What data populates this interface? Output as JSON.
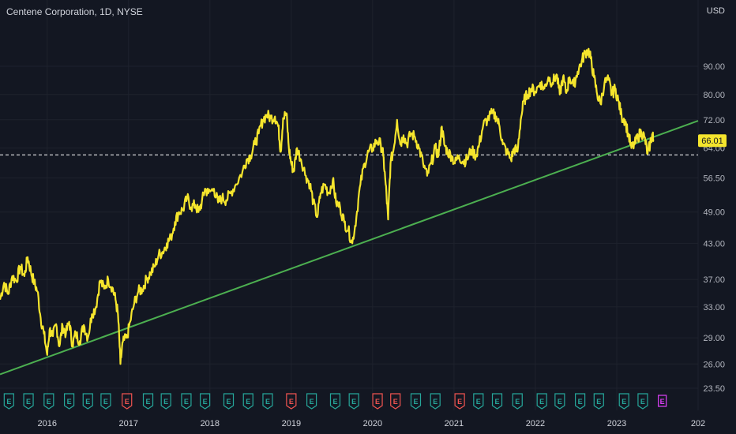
{
  "header": {
    "title": "Centene Corporation, 1D, NYSE",
    "currency": "USD"
  },
  "price_badge": "66.01",
  "colors": {
    "background": "#131722",
    "price_line": "#f5e52d",
    "trend_line": "#4caf50",
    "earnings_green": "#26a69a",
    "earnings_red": "#ef5350",
    "earnings_next": "#e040fb"
  },
  "chart_data": {
    "type": "line",
    "title": "Centene Corporation, 1D, NYSE",
    "xlabel": "",
    "ylabel": "USD",
    "scale": "log",
    "ylim": [
      22.5,
      102
    ],
    "x_ticks": [
      "2016",
      "2017",
      "2018",
      "2019",
      "2020",
      "2021",
      "2022",
      "2023",
      "202"
    ],
    "y_ticks": [
      23.5,
      26.0,
      29.0,
      33.0,
      37.0,
      43.0,
      49.0,
      56.5,
      64.0,
      72.0,
      80.0,
      90.0
    ],
    "y_tick_labels": [
      "23.50",
      "26.00",
      "29.00",
      "33.00",
      "37.00",
      "43.00",
      "49.00",
      "56.50",
      "64.00",
      "72.00",
      "80.00",
      "90.00"
    ],
    "series": [
      {
        "values": [
          [
            2015.42,
            34.0
          ],
          [
            2015.47,
            36.5
          ],
          [
            2015.52,
            34.8
          ],
          [
            2015.57,
            37.5
          ],
          [
            2015.62,
            36.8
          ],
          [
            2015.67,
            39.0
          ],
          [
            2015.72,
            37.5
          ],
          [
            2015.76,
            40.6
          ],
          [
            2015.8,
            38.2
          ],
          [
            2015.84,
            36.5
          ],
          [
            2015.88,
            35.2
          ],
          [
            2015.92,
            31.5
          ],
          [
            2015.96,
            29.5
          ],
          [
            2016.0,
            27.0
          ],
          [
            2016.03,
            30.0
          ],
          [
            2016.07,
            29.2
          ],
          [
            2016.11,
            30.7
          ],
          [
            2016.15,
            28.0
          ],
          [
            2016.19,
            30.5
          ],
          [
            2016.23,
            29.5
          ],
          [
            2016.27,
            31.0
          ],
          [
            2016.31,
            28.2
          ],
          [
            2016.35,
            29.5
          ],
          [
            2016.4,
            28.6
          ],
          [
            2016.45,
            30.6
          ],
          [
            2016.5,
            29.0
          ],
          [
            2016.55,
            32.0
          ],
          [
            2016.6,
            33.0
          ],
          [
            2016.65,
            36.8
          ],
          [
            2016.7,
            35.6
          ],
          [
            2016.75,
            37.0
          ],
          [
            2016.8,
            35.8
          ],
          [
            2016.84,
            34.0
          ],
          [
            2016.87,
            32.0
          ],
          [
            2016.9,
            26.0
          ],
          [
            2016.93,
            28.5
          ],
          [
            2016.98,
            29.0
          ],
          [
            2017.02,
            31.0
          ],
          [
            2017.07,
            33.5
          ],
          [
            2017.12,
            35.2
          ],
          [
            2017.17,
            35.5
          ],
          [
            2017.22,
            37.0
          ],
          [
            2017.27,
            38.0
          ],
          [
            2017.32,
            39.0
          ],
          [
            2017.37,
            41.0
          ],
          [
            2017.42,
            41.5
          ],
          [
            2017.47,
            43.0
          ],
          [
            2017.52,
            44.0
          ],
          [
            2017.57,
            47.0
          ],
          [
            2017.62,
            49.0
          ],
          [
            2017.67,
            49.5
          ],
          [
            2017.72,
            52.0
          ],
          [
            2017.77,
            50.0
          ],
          [
            2017.82,
            50.5
          ],
          [
            2017.86,
            49.0
          ],
          [
            2017.9,
            51.0
          ],
          [
            2017.94,
            54.0
          ],
          [
            2017.98,
            53.0
          ],
          [
            2018.05,
            54.0
          ],
          [
            2018.1,
            51.0
          ],
          [
            2018.15,
            52.0
          ],
          [
            2018.2,
            51.5
          ],
          [
            2018.25,
            53.0
          ],
          [
            2018.32,
            55.0
          ],
          [
            2018.4,
            58.0
          ],
          [
            2018.45,
            61.0
          ],
          [
            2018.5,
            62.0
          ],
          [
            2018.55,
            65.0
          ],
          [
            2018.6,
            68.0
          ],
          [
            2018.65,
            72.0
          ],
          [
            2018.7,
            73.5
          ],
          [
            2018.75,
            72.5
          ],
          [
            2018.8,
            73.0
          ],
          [
            2018.84,
            70.0
          ],
          [
            2018.87,
            63.0
          ],
          [
            2018.9,
            72.5
          ],
          [
            2018.94,
            74.0
          ],
          [
            2018.97,
            64.0
          ],
          [
            2019.0,
            60.0
          ],
          [
            2019.03,
            58.0
          ],
          [
            2019.07,
            64.0
          ],
          [
            2019.12,
            61.0
          ],
          [
            2019.18,
            57.0
          ],
          [
            2019.23,
            55.0
          ],
          [
            2019.27,
            51.0
          ],
          [
            2019.32,
            48.0
          ],
          [
            2019.36,
            53.0
          ],
          [
            2019.41,
            55.0
          ],
          [
            2019.46,
            53.0
          ],
          [
            2019.51,
            56.0
          ],
          [
            2019.55,
            51.0
          ],
          [
            2019.6,
            50.0
          ],
          [
            2019.65,
            47.0
          ],
          [
            2019.7,
            45.5
          ],
          [
            2019.75,
            43.0
          ],
          [
            2019.8,
            48.0
          ],
          [
            2019.85,
            55.0
          ],
          [
            2019.9,
            60.0
          ],
          [
            2019.95,
            63.0
          ],
          [
            2020.0,
            64.0
          ],
          [
            2020.05,
            66.0
          ],
          [
            2020.1,
            65.0
          ],
          [
            2020.13,
            62.0
          ],
          [
            2020.16,
            55.0
          ],
          [
            2020.19,
            47.5
          ],
          [
            2020.22,
            60.0
          ],
          [
            2020.26,
            64.0
          ],
          [
            2020.3,
            72.0
          ],
          [
            2020.34,
            65.0
          ],
          [
            2020.38,
            67.5
          ],
          [
            2020.42,
            65.0
          ],
          [
            2020.47,
            68.0
          ],
          [
            2020.52,
            67.0
          ],
          [
            2020.57,
            64.0
          ],
          [
            2020.62,
            60.0
          ],
          [
            2020.67,
            57.0
          ],
          [
            2020.72,
            60.0
          ],
          [
            2020.77,
            64.0
          ],
          [
            2020.81,
            62.0
          ],
          [
            2020.85,
            70.0
          ],
          [
            2020.88,
            65.0
          ],
          [
            2020.92,
            63.0
          ],
          [
            2020.97,
            62.0
          ],
          [
            2021.01,
            60.0
          ],
          [
            2021.06,
            62.0
          ],
          [
            2021.11,
            60.5
          ],
          [
            2021.16,
            61.0
          ],
          [
            2021.21,
            63.5
          ],
          [
            2021.27,
            62.0
          ],
          [
            2021.31,
            65.0
          ],
          [
            2021.36,
            70.5
          ],
          [
            2021.41,
            72.0
          ],
          [
            2021.47,
            74.0
          ],
          [
            2021.52,
            73.0
          ],
          [
            2021.56,
            70.0
          ],
          [
            2021.6,
            65.0
          ],
          [
            2021.65,
            63.0
          ],
          [
            2021.7,
            61.0
          ],
          [
            2021.74,
            64.0
          ],
          [
            2021.78,
            63.0
          ],
          [
            2021.82,
            72.0
          ],
          [
            2021.86,
            78.0
          ],
          [
            2021.9,
            80.0
          ],
          [
            2021.95,
            82.0
          ],
          [
            2022.0,
            81.0
          ],
          [
            2022.06,
            84.0
          ],
          [
            2022.11,
            82.0
          ],
          [
            2022.16,
            86.0
          ],
          [
            2022.21,
            84.0
          ],
          [
            2022.26,
            87.0
          ],
          [
            2022.3,
            80.0
          ],
          [
            2022.34,
            86.0
          ],
          [
            2022.38,
            80.5
          ],
          [
            2022.42,
            86.0
          ],
          [
            2022.47,
            83.0
          ],
          [
            2022.52,
            88.0
          ],
          [
            2022.57,
            92.0
          ],
          [
            2022.61,
            95.0
          ],
          [
            2022.65,
            96.5
          ],
          [
            2022.68,
            93.0
          ],
          [
            2022.72,
            86.0
          ],
          [
            2022.76,
            80.0
          ],
          [
            2022.8,
            77.0
          ],
          [
            2022.85,
            84.0
          ],
          [
            2022.9,
            85.0
          ],
          [
            2022.94,
            80.0
          ],
          [
            2022.98,
            82.0
          ],
          [
            2023.02,
            78.0
          ],
          [
            2023.06,
            73.0
          ],
          [
            2023.1,
            72.0
          ],
          [
            2023.14,
            68.0
          ],
          [
            2023.18,
            64.0
          ],
          [
            2023.22,
            65.0
          ],
          [
            2023.26,
            67.0
          ],
          [
            2023.3,
            68.5
          ],
          [
            2023.34,
            67.0
          ],
          [
            2023.38,
            62.5
          ],
          [
            2023.41,
            65.0
          ],
          [
            2023.44,
            68.0
          ],
          [
            2023.45,
            66.0
          ]
        ]
      }
    ],
    "trend_line": [
      [
        2015.42,
        24.9
      ],
      [
        2024.0,
        71.7
      ]
    ],
    "price_level": 62.2,
    "earnings_events": [
      {
        "t": 2015.53,
        "label": "E",
        "kind": "green"
      },
      {
        "t": 2015.77,
        "label": "E",
        "kind": "green"
      },
      {
        "t": 2016.02,
        "label": "E",
        "kind": "green"
      },
      {
        "t": 2016.27,
        "label": "E",
        "kind": "green"
      },
      {
        "t": 2016.5,
        "label": "E",
        "kind": "green"
      },
      {
        "t": 2016.72,
        "label": "E",
        "kind": "green"
      },
      {
        "t": 2016.98,
        "label": "E",
        "kind": "red"
      },
      {
        "t": 2017.24,
        "label": "E",
        "kind": "green"
      },
      {
        "t": 2017.46,
        "label": "E",
        "kind": "green"
      },
      {
        "t": 2017.71,
        "label": "E",
        "kind": "green"
      },
      {
        "t": 2017.94,
        "label": "E",
        "kind": "green"
      },
      {
        "t": 2018.23,
        "label": "E",
        "kind": "green"
      },
      {
        "t": 2018.47,
        "label": "E",
        "kind": "green"
      },
      {
        "t": 2018.71,
        "label": "E",
        "kind": "green"
      },
      {
        "t": 2019.0,
        "label": "E",
        "kind": "red"
      },
      {
        "t": 2019.25,
        "label": "E",
        "kind": "green"
      },
      {
        "t": 2019.54,
        "label": "E",
        "kind": "green"
      },
      {
        "t": 2019.77,
        "label": "E",
        "kind": "green"
      },
      {
        "t": 2020.06,
        "label": "E",
        "kind": "red"
      },
      {
        "t": 2020.28,
        "label": "E",
        "kind": "red"
      },
      {
        "t": 2020.53,
        "label": "E",
        "kind": "green"
      },
      {
        "t": 2020.77,
        "label": "E",
        "kind": "green"
      },
      {
        "t": 2021.07,
        "label": "E",
        "kind": "red"
      },
      {
        "t": 2021.3,
        "label": "E",
        "kind": "green"
      },
      {
        "t": 2021.53,
        "label": "E",
        "kind": "green"
      },
      {
        "t": 2021.78,
        "label": "E",
        "kind": "green"
      },
      {
        "t": 2022.08,
        "label": "E",
        "kind": "green"
      },
      {
        "t": 2022.3,
        "label": "E",
        "kind": "green"
      },
      {
        "t": 2022.55,
        "label": "E",
        "kind": "green"
      },
      {
        "t": 2022.78,
        "label": "E",
        "kind": "green"
      },
      {
        "t": 2023.09,
        "label": "E",
        "kind": "green"
      },
      {
        "t": 2023.32,
        "label": "E",
        "kind": "green"
      },
      {
        "t": 2023.56,
        "label": "E",
        "kind": "next"
      }
    ]
  }
}
